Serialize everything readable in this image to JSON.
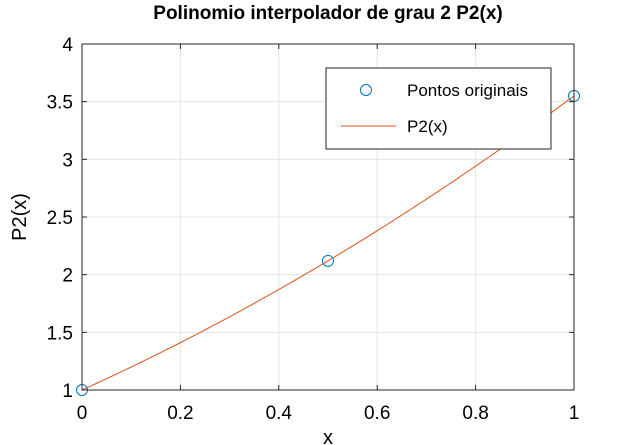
{
  "chart_data": {
    "type": "line",
    "title": "Polinomio interpolador de grau 2 P2(x)",
    "xlabel": "x",
    "ylabel": "P2(x)",
    "xlim": [
      0,
      1
    ],
    "ylim": [
      1,
      4
    ],
    "xticks": [
      "0",
      "0.2",
      "0.4",
      "0.6",
      "0.8",
      "1"
    ],
    "xtick_values": [
      0,
      0.2,
      0.4,
      0.6,
      0.8,
      1
    ],
    "yticks": [
      "1",
      "1.5",
      "2",
      "2.5",
      "3",
      "3.5",
      "4"
    ],
    "ytick_values": [
      1,
      1.5,
      2,
      2.5,
      3,
      3.5,
      4
    ],
    "grid": true,
    "legend_position": "top-right",
    "series": [
      {
        "name": "Pontos originais",
        "kind": "scatter",
        "marker": "circle",
        "color": "#0072bd",
        "x": [
          0,
          0.5,
          1
        ],
        "y": [
          1.0,
          2.12,
          3.55
        ]
      },
      {
        "name": "P2(x)",
        "kind": "line",
        "color": "#d95319",
        "coefficients": [
          1.0,
          1.93,
          0.62
        ]
      }
    ]
  }
}
